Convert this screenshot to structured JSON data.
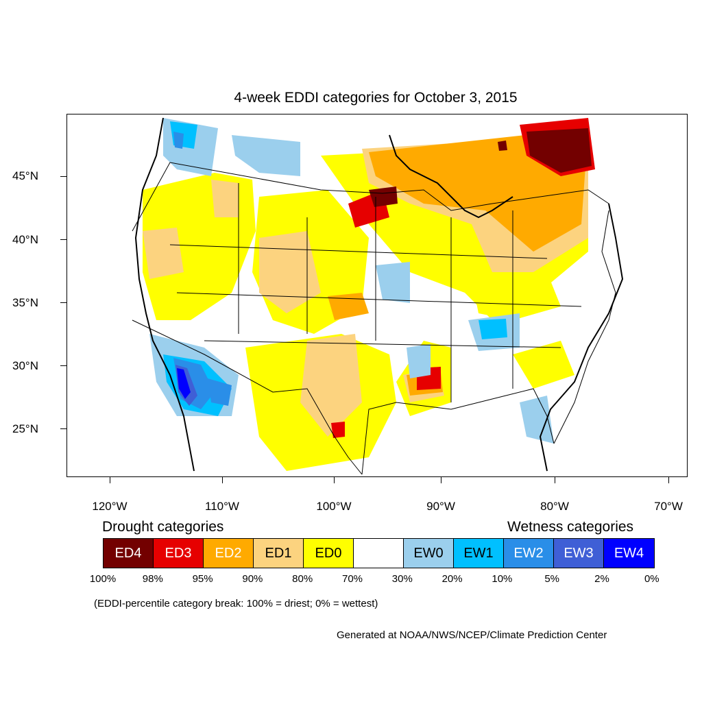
{
  "title": "4-week EDDI categories for October 3, 2015",
  "axes": {
    "lat_labels": [
      "45°N",
      "40°N",
      "35°N",
      "30°N",
      "25°N"
    ],
    "lon_labels": [
      "120°W",
      "110°W",
      "100°W",
      "90°W",
      "80°W",
      "70°W"
    ]
  },
  "legend": {
    "drought_heading": "Drought categories",
    "wetness_heading": "Wetness categories",
    "categories": [
      {
        "label": "ED4",
        "color": "#730000",
        "text_color": "#ffffff"
      },
      {
        "label": "ED3",
        "color": "#e60000",
        "text_color": "#ffffff"
      },
      {
        "label": "ED2",
        "color": "#ffaa00",
        "text_color": "#ffffff"
      },
      {
        "label": "ED1",
        "color": "#fcd37f",
        "text_color": "#000000"
      },
      {
        "label": "ED0",
        "color": "#ffff00",
        "text_color": "#000000"
      },
      {
        "label": "",
        "color": "#ffffff",
        "text_color": "#000000"
      },
      {
        "label": "EW0",
        "color": "#9bcfed",
        "text_color": "#000000"
      },
      {
        "label": "EW1",
        "color": "#00c0ff",
        "text_color": "#000000"
      },
      {
        "label": "EW2",
        "color": "#2a8ee8",
        "text_color": "#ffffff"
      },
      {
        "label": "EW3",
        "color": "#3f5fd6",
        "text_color": "#ffffff"
      },
      {
        "label": "EW4",
        "color": "#0000ff",
        "text_color": "#ffffff"
      }
    ],
    "percent_breaks": [
      "100%",
      "98%",
      "95%",
      "90%",
      "80%",
      "70%",
      "30%",
      "20%",
      "10%",
      "5%",
      "2%",
      "0%"
    ]
  },
  "note": "(EDDI-percentile category break: 100% = driest; 0% = wettest)",
  "credit": "Generated at NOAA/NWS/NCEP/Climate Prediction Center"
}
